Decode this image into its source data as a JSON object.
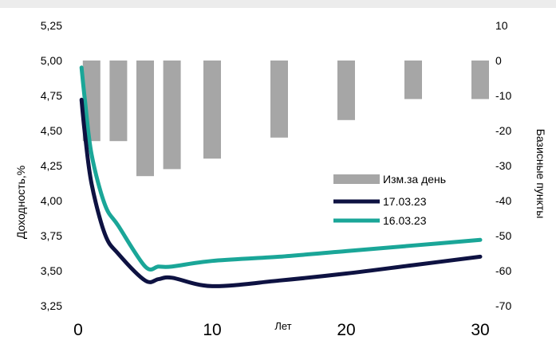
{
  "chart_data": {
    "type": "bar+line",
    "title": "",
    "xlabel": "Лет",
    "ylabel_left": "Доходность,%",
    "ylabel_right": "Базисные пункты",
    "xlim": [
      0,
      30
    ],
    "ylim_left": [
      3.25,
      5.25
    ],
    "ylim_right": [
      -70,
      10
    ],
    "x_ticks": [
      "0",
      "10",
      "20",
      "30"
    ],
    "y_left_ticks": [
      "5,25",
      "5,00",
      "4,75",
      "4,50",
      "4,25",
      "4,00",
      "3,75",
      "3,50",
      "3,25"
    ],
    "y_right_ticks": [
      "10",
      "0",
      "-10",
      "-20",
      "-30",
      "-40",
      "-50",
      "-60",
      "-70"
    ],
    "grid": false,
    "legend_position": "right",
    "bars": {
      "name": "Изм.за день",
      "axis": "right",
      "color": "#a6a6a6",
      "x": [
        1,
        3,
        5,
        7,
        10,
        15,
        20,
        25,
        30
      ],
      "values": [
        -23,
        -23,
        -33,
        -31,
        -28,
        -22,
        -17,
        -11,
        -11
      ]
    },
    "series": [
      {
        "name": "17.03.23",
        "axis": "left",
        "color": "#0e1242",
        "x": [
          0.25,
          0.5,
          1,
          2,
          3,
          5,
          6,
          7,
          10,
          15,
          20,
          25,
          30
        ],
        "y": [
          4.72,
          4.48,
          4.12,
          3.76,
          3.62,
          3.43,
          3.44,
          3.45,
          3.39,
          3.43,
          3.48,
          3.54,
          3.6
        ]
      },
      {
        "name": "16.03.23",
        "axis": "left",
        "color": "#1aa698",
        "x": [
          0.25,
          0.5,
          1,
          2,
          3,
          5,
          6,
          7,
          10,
          15,
          20,
          25,
          30
        ],
        "y": [
          4.95,
          4.72,
          4.33,
          3.97,
          3.82,
          3.53,
          3.53,
          3.53,
          3.57,
          3.6,
          3.64,
          3.68,
          3.72
        ]
      }
    ]
  }
}
